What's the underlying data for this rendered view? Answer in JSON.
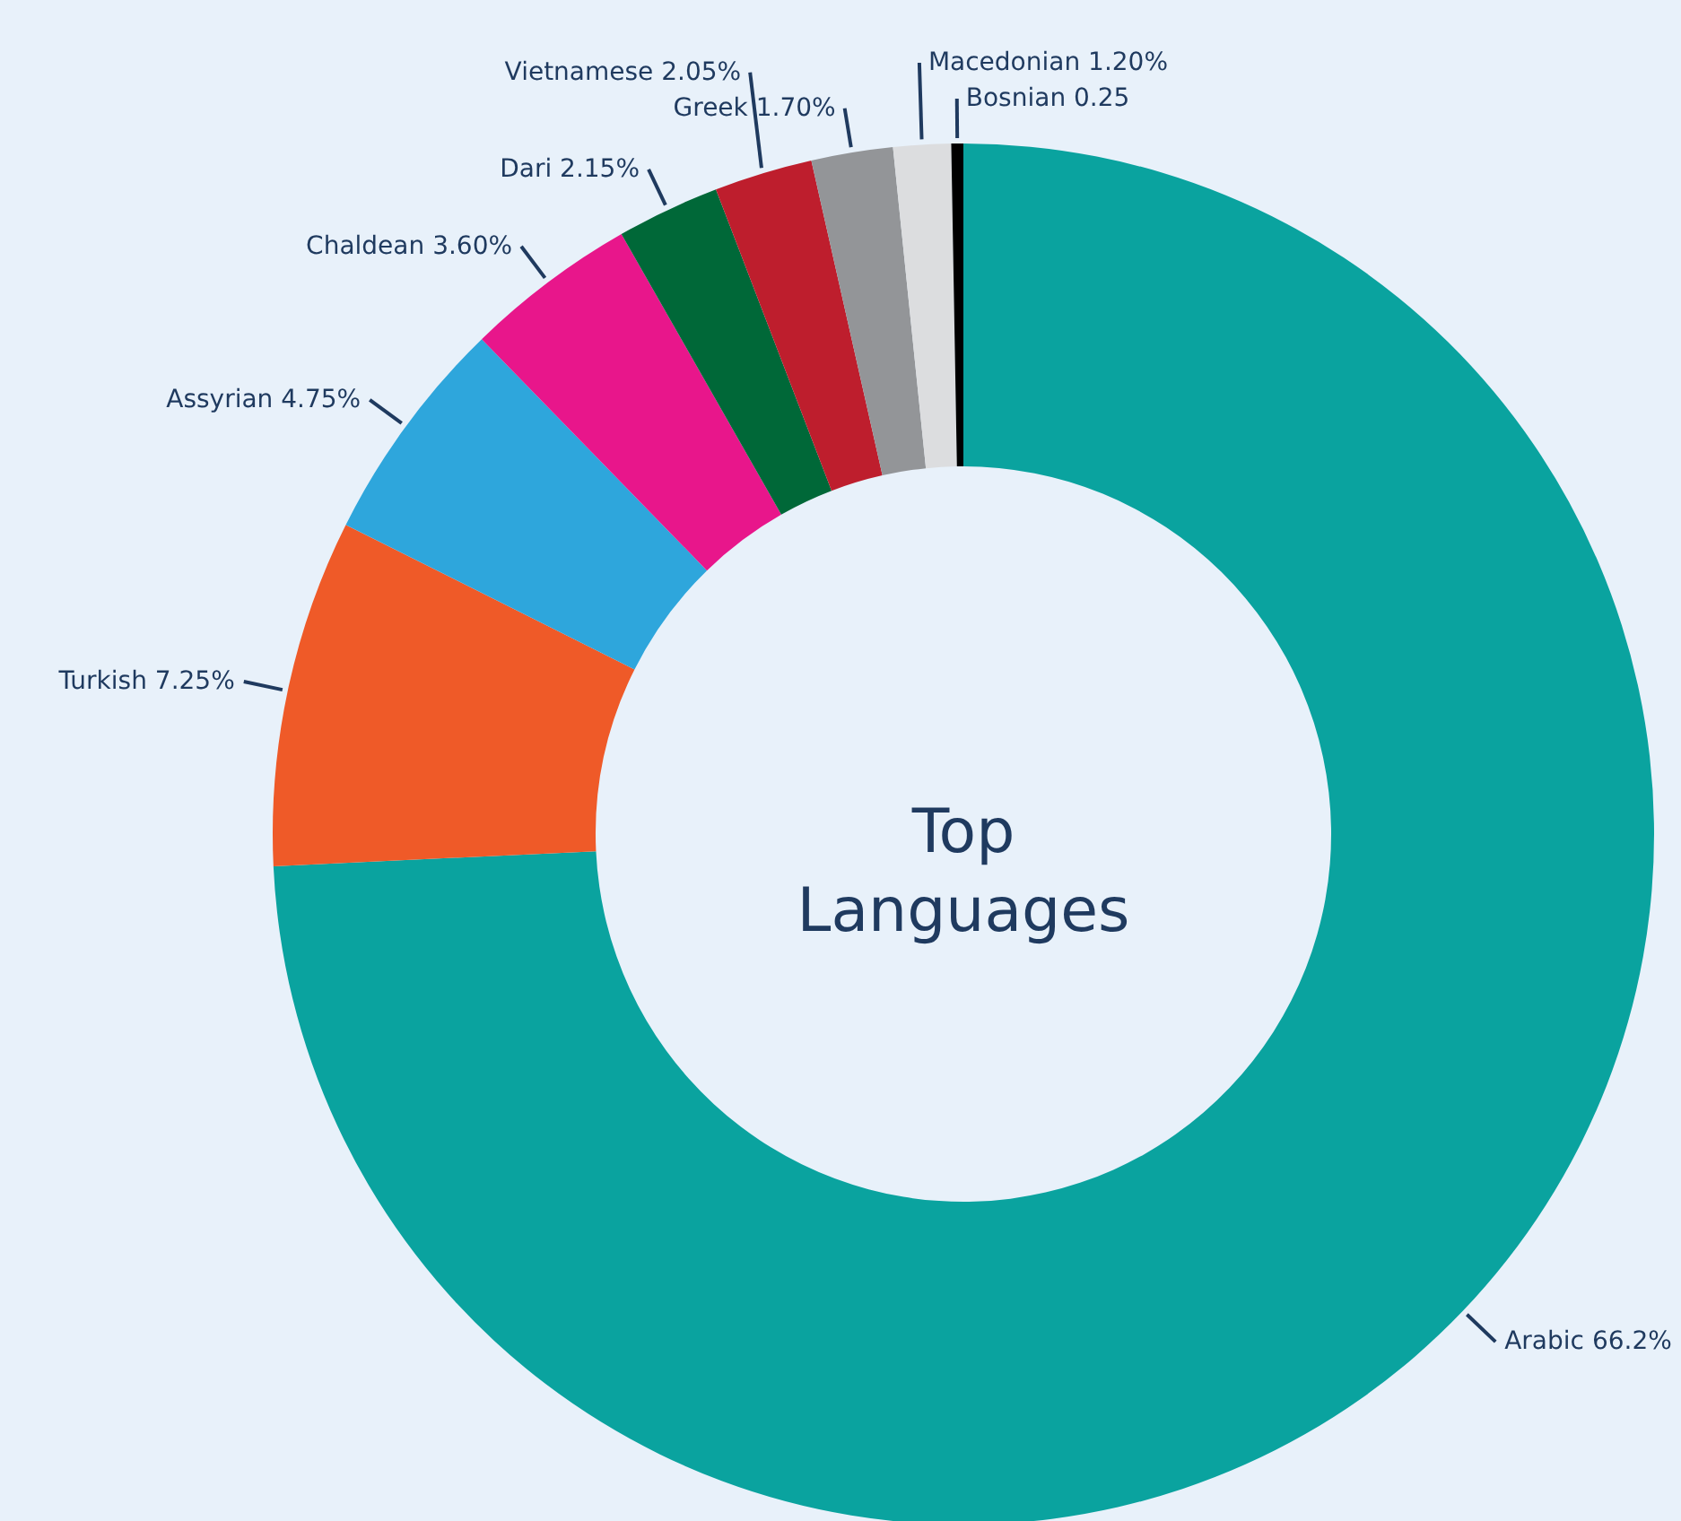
{
  "chart_data": {
    "type": "donut",
    "title": "Top Languages",
    "categories": [
      "Arabic",
      "Turkish",
      "Assyrian",
      "Chaldean",
      "Dari",
      "Vietnamese",
      "Greek",
      "Macedonian",
      "Bosnian"
    ],
    "values": [
      66.2,
      7.25,
      4.75,
      3.6,
      2.15,
      2.05,
      1.7,
      1.2,
      0.25
    ],
    "value_labels": [
      "66.2%",
      "7.25%",
      "4.75%",
      "3.60%",
      "2.15%",
      "2.05%",
      "1.70%",
      "1.20%",
      "0.25"
    ],
    "colors": [
      "#0aa39f",
      "#ef5a28",
      "#2ea6dc",
      "#e8168b",
      "#006838",
      "#be1e2d",
      "#939598",
      "#dcdddf",
      "#000000"
    ],
    "legend": false
  }
}
